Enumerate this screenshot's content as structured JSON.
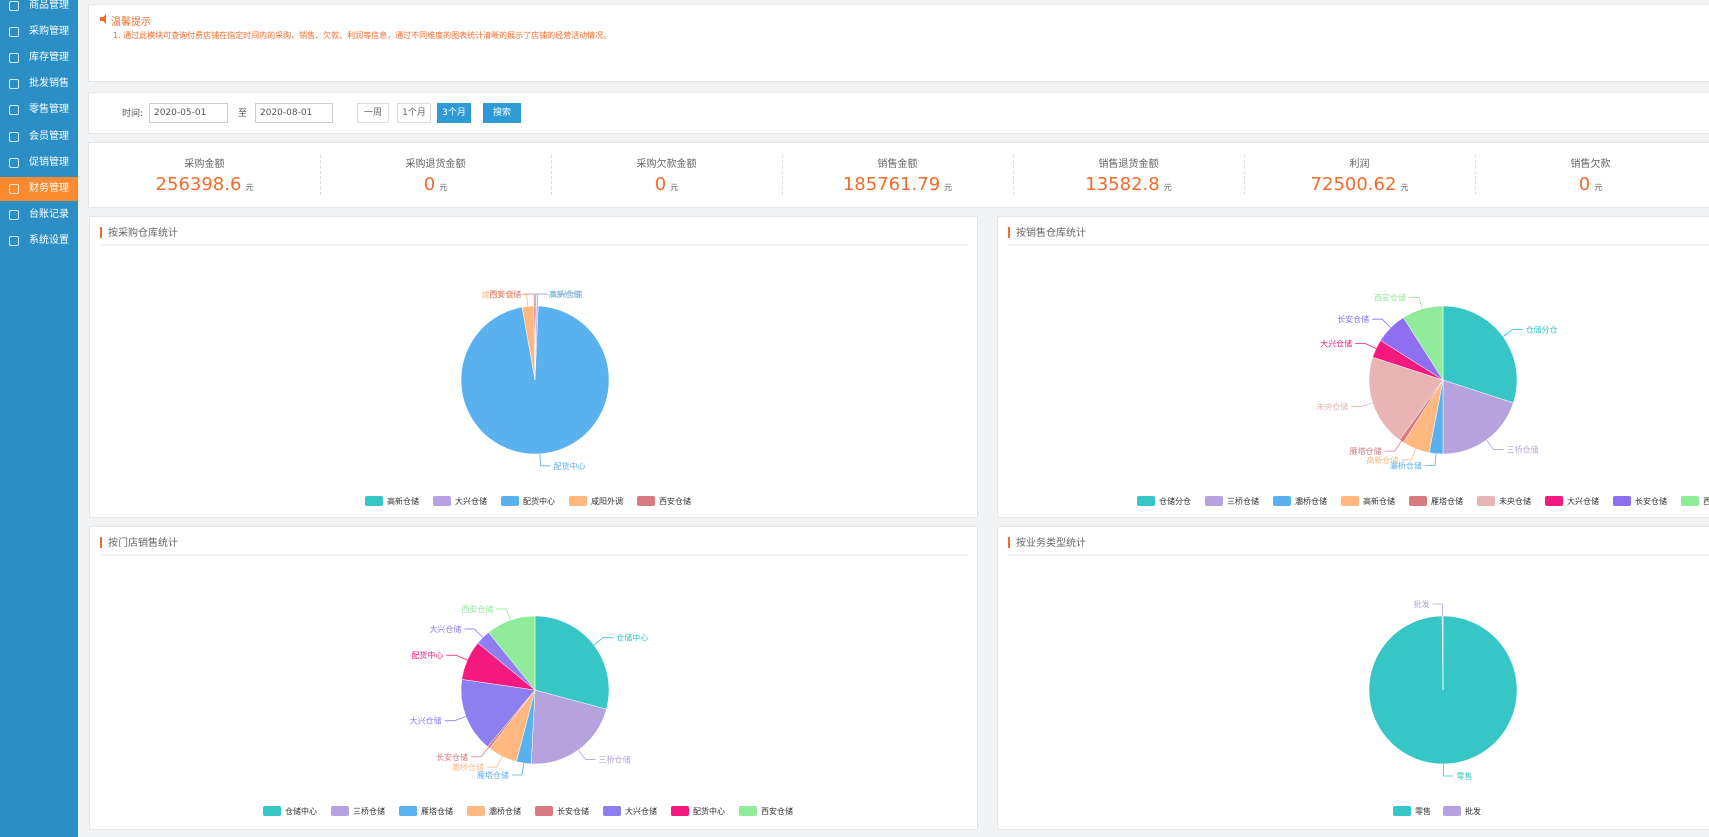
{
  "sidebar": {
    "items": [
      "商品管理",
      "采购管理",
      "库存管理",
      "批发销售",
      "零售管理",
      "会员管理",
      "促销管理",
      "财务管理",
      "台账记录",
      "系统设置"
    ],
    "active": 7
  },
  "notice": {
    "title": "温馨提示",
    "text": "1. 通过此模块可查询付费店铺在指定时间内的采购、销售、欠款、利润等信息，通过不同维度的图表统计清晰的展示了店铺的经营活动情况。"
  },
  "search": {
    "label": "时间:",
    "start": "2020-05-01",
    "separator": "至",
    "end": "2020-08-01",
    "ranges": [
      "一周",
      "1个月",
      "3个月"
    ],
    "active_range": 2,
    "button": "搜索"
  },
  "stats": {
    "unit": "元",
    "items": [
      {
        "label": "采购金额",
        "value": 256398.6
      },
      {
        "label": "采购退货金额",
        "value": 0
      },
      {
        "label": "采购欠款金额",
        "value": 0
      },
      {
        "label": "销售金额",
        "value": 185761.79
      },
      {
        "label": "销售退货金额",
        "value": 13582.8
      },
      {
        "label": "利润",
        "value": 72500.62
      },
      {
        "label": "销售欠款",
        "value": 0
      }
    ]
  },
  "chart_data": [
    {
      "type": "pie",
      "title": "按采购仓库统计",
      "categories": [
        "高新仓储",
        "大兴仓储",
        "配货中心",
        "咸阳外调",
        "西安仓储"
      ],
      "values": [
        0.3,
        0.4,
        96.5,
        2.5,
        0.3
      ],
      "colors": [
        "#36c6c6",
        "#b6a2de",
        "#5ab1ef",
        "#ffb980",
        "#d87a80"
      ]
    },
    {
      "type": "pie",
      "title": "按销售仓库统计",
      "categories": [
        "仓储分仓",
        "三桥仓储",
        "灞桥仓储",
        "高新仓储",
        "雁塔仓储",
        "未央仓储",
        "大兴仓储",
        "长安仓储",
        "西安仓储"
      ],
      "values": [
        30,
        20,
        3,
        6,
        1,
        20,
        4,
        7,
        9
      ],
      "colors": [
        "#36c6c6",
        "#b6a2de",
        "#5ab1ef",
        "#ffb980",
        "#d87a80",
        "#e9b4b4",
        "#f3197e",
        "#8d6ff0",
        "#90eb9a"
      ]
    },
    {
      "type": "pie",
      "title": "按门店销售统计",
      "categories": [
        "仓储中心",
        "三桥仓储",
        "雁塔仓储",
        "灞桥仓储",
        "长安仓储",
        "大兴仓储",
        "配货中心",
        "大兴仓储",
        "西安仓储"
      ],
      "values": [
        27,
        20,
        3,
        6,
        0.5,
        15,
        8,
        3,
        10
      ],
      "colors": [
        "#36c6c6",
        "#b6a2de",
        "#5ab1ef",
        "#ffb980",
        "#d87a80",
        "#8d7ff0",
        "#f3197e",
        "#8d7ff0",
        "#90eb9a"
      ]
    },
    {
      "type": "pie",
      "title": "按业务类型统计",
      "categories": [
        "零售",
        "批发"
      ],
      "values": [
        99.8,
        0.2
      ],
      "colors": [
        "#36c6c6",
        "#b6a2de"
      ]
    }
  ]
}
